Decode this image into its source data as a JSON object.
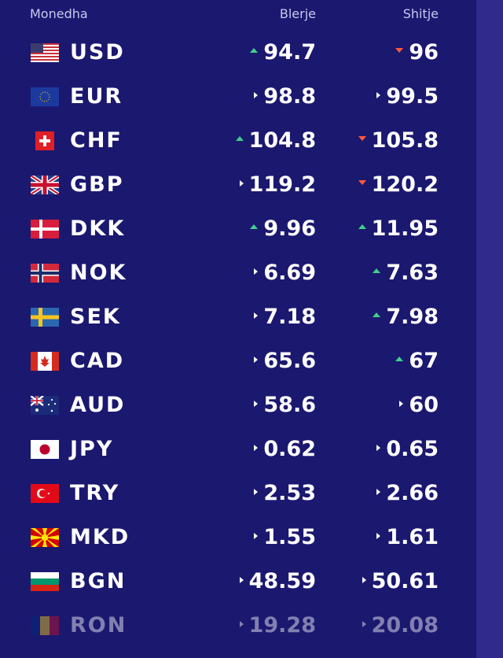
{
  "header": {
    "currency": "Monedha",
    "buy": "Blerje",
    "sell": "Shitje"
  },
  "rates": [
    {
      "code": "USD",
      "flag": "us-flag-icon",
      "buy": "94.7",
      "buy_trend": "up",
      "sell": "96",
      "sell_trend": "down"
    },
    {
      "code": "EUR",
      "flag": "eu-flag-icon",
      "buy": "98.8",
      "buy_trend": "same",
      "sell": "99.5",
      "sell_trend": "same"
    },
    {
      "code": "CHF",
      "flag": "ch-flag-icon",
      "buy": "104.8",
      "buy_trend": "up",
      "sell": "105.8",
      "sell_trend": "down"
    },
    {
      "code": "GBP",
      "flag": "gb-flag-icon",
      "buy": "119.2",
      "buy_trend": "same",
      "sell": "120.2",
      "sell_trend": "down"
    },
    {
      "code": "DKK",
      "flag": "dk-flag-icon",
      "buy": "9.96",
      "buy_trend": "up",
      "sell": "11.95",
      "sell_trend": "up"
    },
    {
      "code": "NOK",
      "flag": "no-flag-icon",
      "buy": "6.69",
      "buy_trend": "same",
      "sell": "7.63",
      "sell_trend": "up"
    },
    {
      "code": "SEK",
      "flag": "se-flag-icon",
      "buy": "7.18",
      "buy_trend": "same",
      "sell": "7.98",
      "sell_trend": "up"
    },
    {
      "code": "CAD",
      "flag": "ca-flag-icon",
      "buy": "65.6",
      "buy_trend": "same",
      "sell": "67",
      "sell_trend": "up"
    },
    {
      "code": "AUD",
      "flag": "au-flag-icon",
      "buy": "58.6",
      "buy_trend": "same",
      "sell": "60",
      "sell_trend": "same"
    },
    {
      "code": "JPY",
      "flag": "jp-flag-icon",
      "buy": "0.62",
      "buy_trend": "same",
      "sell": "0.65",
      "sell_trend": "same"
    },
    {
      "code": "TRY",
      "flag": "tr-flag-icon",
      "buy": "2.53",
      "buy_trend": "same",
      "sell": "2.66",
      "sell_trend": "same"
    },
    {
      "code": "MKD",
      "flag": "mk-flag-icon",
      "buy": "1.55",
      "buy_trend": "same",
      "sell": "1.61",
      "sell_trend": "same"
    },
    {
      "code": "BGN",
      "flag": "bg-flag-icon",
      "buy": "48.59",
      "buy_trend": "same",
      "sell": "50.61",
      "sell_trend": "same"
    },
    {
      "code": "RON",
      "flag": "ro-flag-icon",
      "buy": "19.28",
      "buy_trend": "same",
      "sell": "20.08",
      "sell_trend": "same"
    }
  ],
  "colors": {
    "background": "#1b1870",
    "up": "#3fd18a",
    "down": "#ff5a3c",
    "scrollbar": "#2f2a8c"
  }
}
